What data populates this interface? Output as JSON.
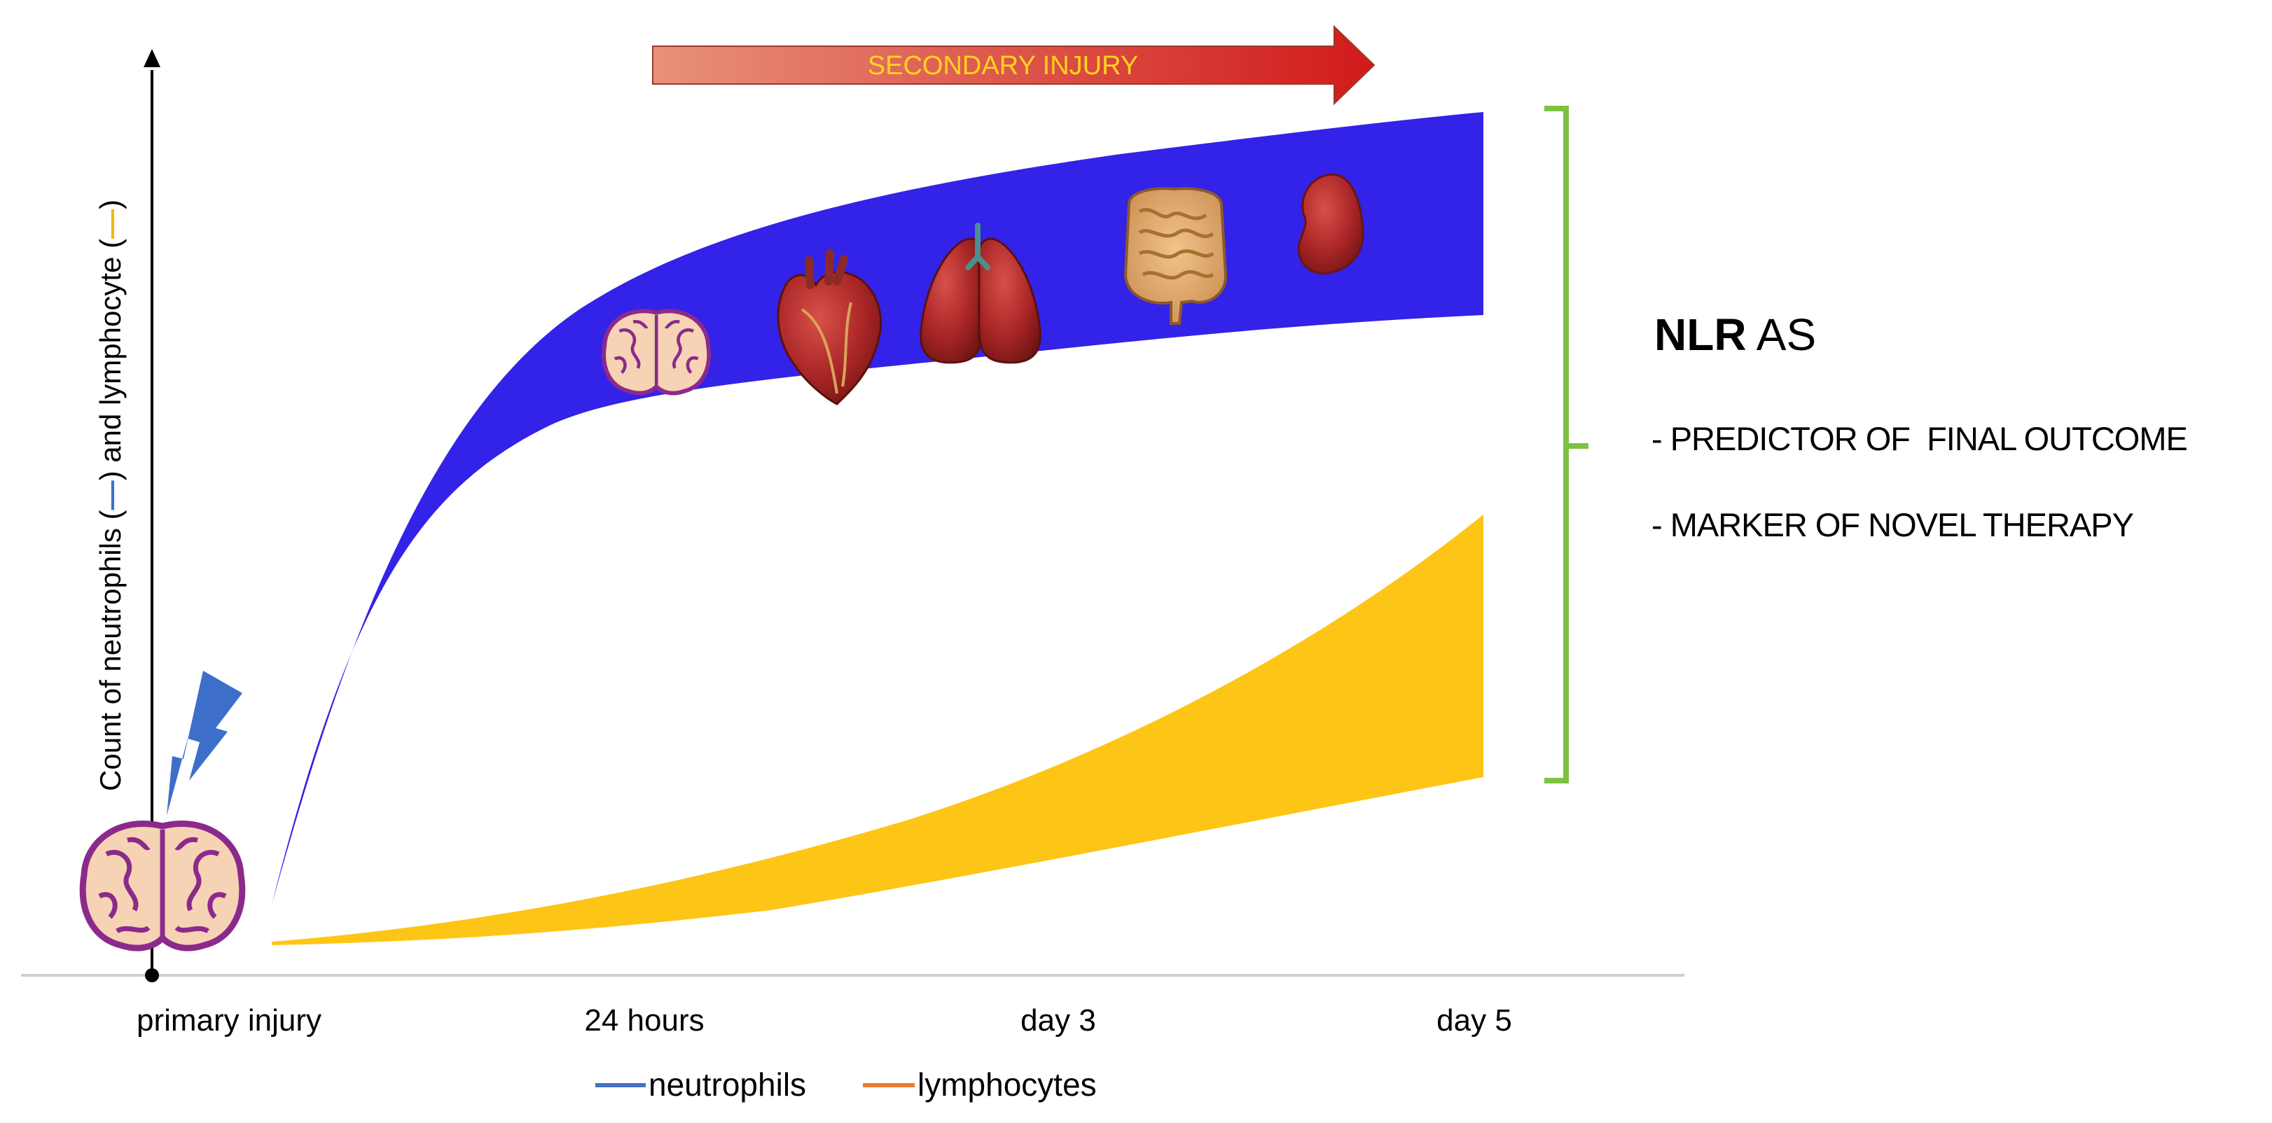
{
  "banner": {
    "label": "SECONDARY INJURY"
  },
  "y_axis": {
    "part1": "Count of neutrophils (",
    "part2": ") and lymphocyte (",
    "part3": ")",
    "neutrophil_mark_color": "#3b6fd6",
    "lymphocyte_mark_color": "#f2b705"
  },
  "x_axis": {
    "ticks": [
      "primary injury",
      "24 hours",
      "day 3",
      "day 5"
    ]
  },
  "legend": [
    {
      "label": "neutrophils",
      "color": "#4472c4"
    },
    {
      "label": "lymphocytes",
      "color": "#ed7d31"
    }
  ],
  "nlr": {
    "heading_bold": "NLR",
    "heading_rest": " AS",
    "items": [
      "- PREDICTOR OF  FINAL OUTCOME",
      "- MARKER OF NOVEL THERAPY"
    ]
  },
  "colors": {
    "neutrophil_band": "#3322e8",
    "lymphocyte_band": "#fdc515",
    "bracket": "#7dc241",
    "arrow_start": "#e8917a",
    "arrow_end": "#d11a1a",
    "lightning": "#3d6ec9",
    "brain_outline": "#8b2a8b",
    "brain_fill": "#f6d3b4"
  },
  "icons": [
    "brain-icon",
    "lightning-icon",
    "heart-icon",
    "lungs-icon",
    "intestines-icon",
    "kidney-icon"
  ]
}
